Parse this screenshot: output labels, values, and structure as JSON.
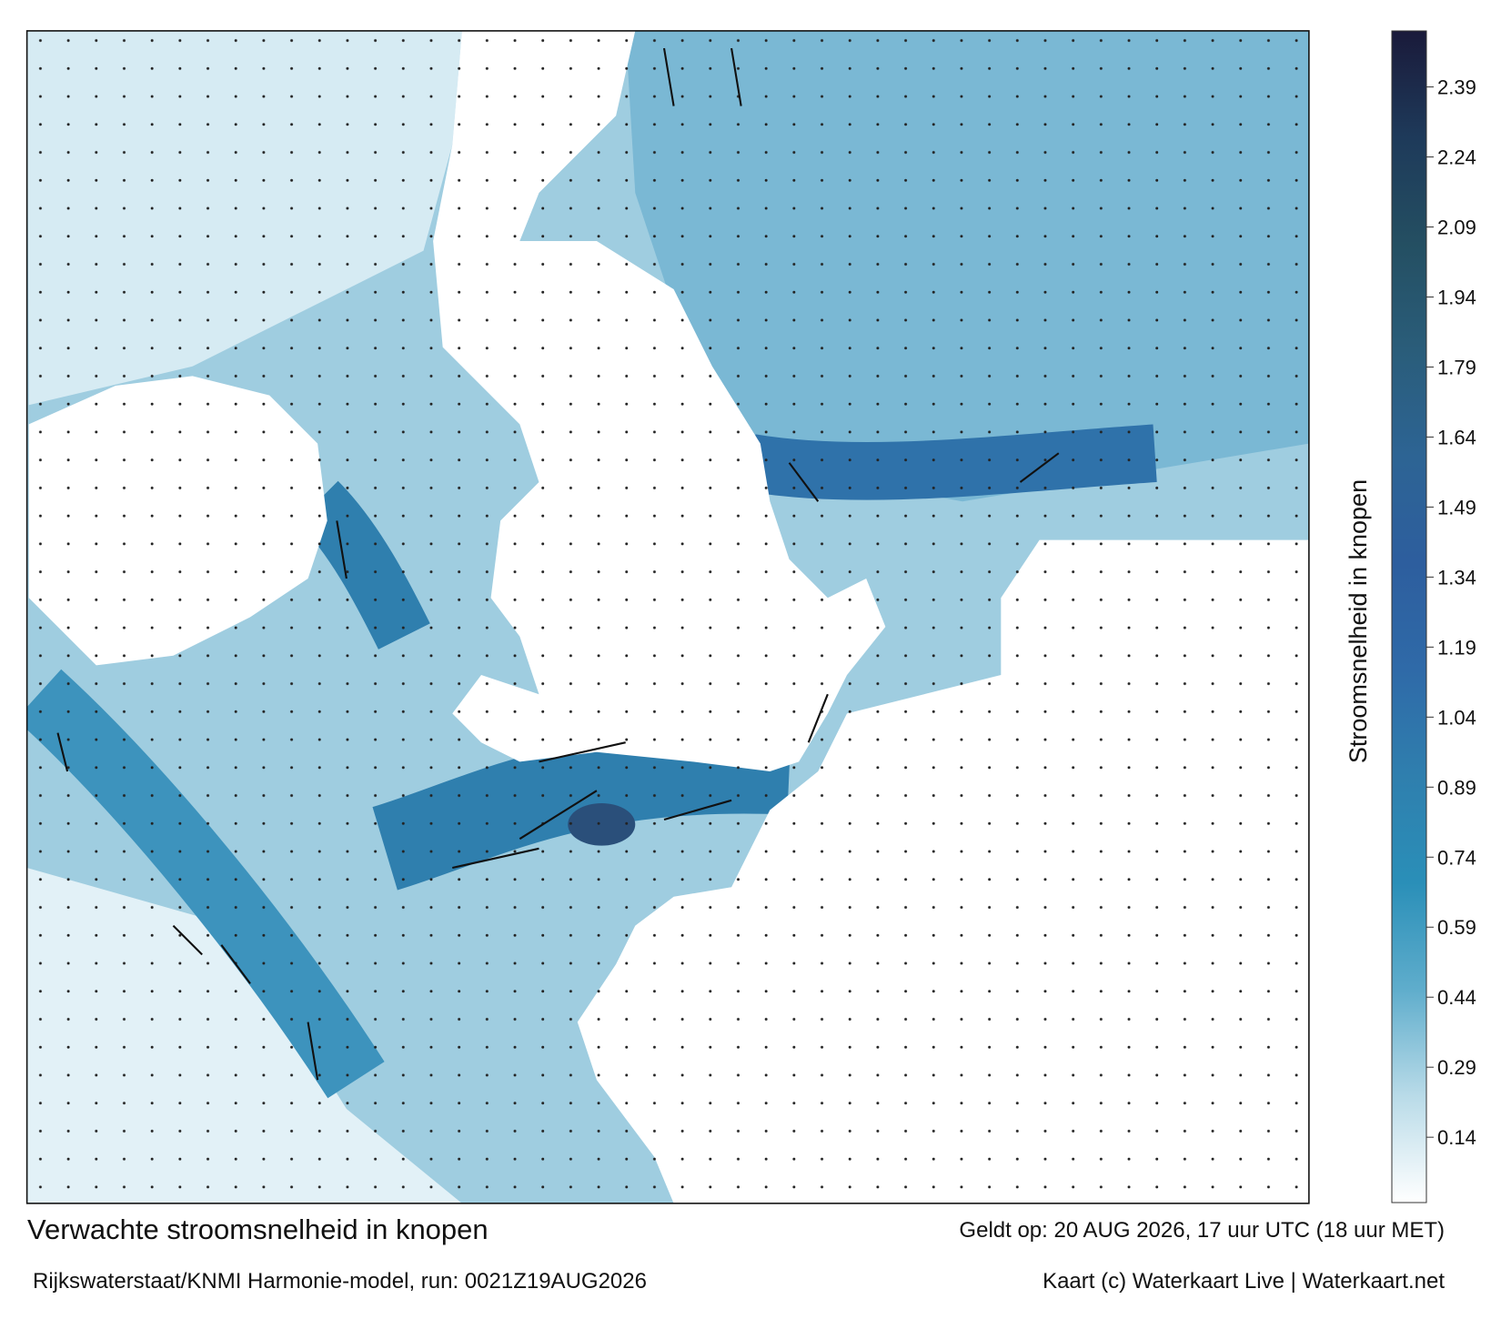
{
  "map": {
    "title": "Verwachte stroomsnelheid in knopen",
    "valid": "Geldt op: 20 AUG 2026, 17 uur UTC (18 uur MET)",
    "source": "Rijkswaterstaat/KNMI Harmonie-model, run: 0021Z19AUG2026",
    "credit": "Kaart (c) Waterkaart Live | Waterkaart.net",
    "colorbar": {
      "label": "Stroomsnelheid in knopen",
      "lim": [
        0,
        2.51
      ],
      "ticks": [
        0.14,
        0.29,
        0.44,
        0.59,
        0.74,
        0.89,
        1.04,
        1.19,
        1.34,
        1.49,
        1.64,
        1.79,
        1.94,
        2.09,
        2.24,
        2.39
      ],
      "colors": [
        "#ffffff",
        "#b9dbe8",
        "#5fadcc",
        "#2a8fb8",
        "#2f7fae",
        "#2f6aa8",
        "#2d5e9e",
        "#2d6494",
        "#2a5d7a",
        "#244f62",
        "#1e3a5a",
        "#1a1a3a"
      ]
    }
  }
}
